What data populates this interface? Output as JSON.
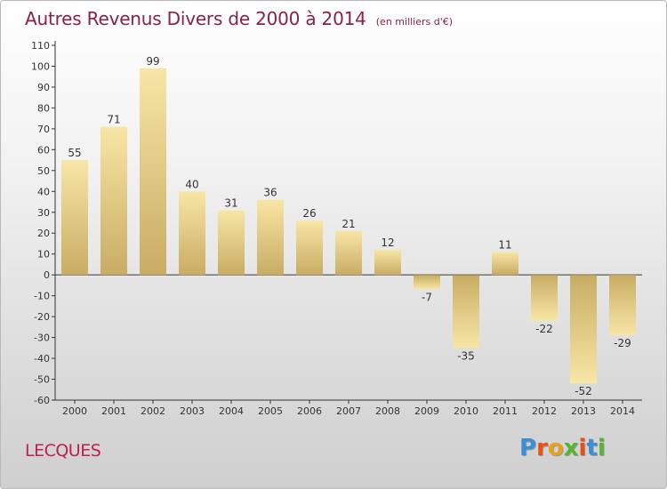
{
  "header": {
    "title": "Autres Revenus Divers de 2000 à 2014",
    "subtitle": "(en milliers d'€)"
  },
  "footer": {
    "commune": "LECQUES",
    "logo_text": "Proxiti"
  },
  "colors": {
    "title": "#8a2046",
    "commune": "#c0204f",
    "bar_light": "#f8e6a6",
    "bar_dark": "#c8ac64",
    "logo_letters": [
      "#3b8fd4",
      "#e94e1b",
      "#e6a21d",
      "#57b333",
      "#e94e1b",
      "#3b8fd4",
      "#57b333"
    ]
  },
  "chart_data": {
    "type": "bar",
    "categories": [
      "2000",
      "2001",
      "2002",
      "2003",
      "2004",
      "2005",
      "2006",
      "2007",
      "2008",
      "2009",
      "2010",
      "2011",
      "2012",
      "2013",
      "2014"
    ],
    "values": [
      55,
      71,
      99,
      40,
      31,
      36,
      26,
      21,
      12,
      -7,
      -35,
      11,
      -22,
      -52,
      -29
    ],
    "ylim": [
      -60,
      110
    ],
    "yticks": [
      110,
      100,
      90,
      80,
      70,
      60,
      50,
      40,
      30,
      20,
      10,
      0,
      -10,
      -20,
      -30,
      -40,
      -50,
      -60
    ],
    "grid": false,
    "data_labels": true
  }
}
